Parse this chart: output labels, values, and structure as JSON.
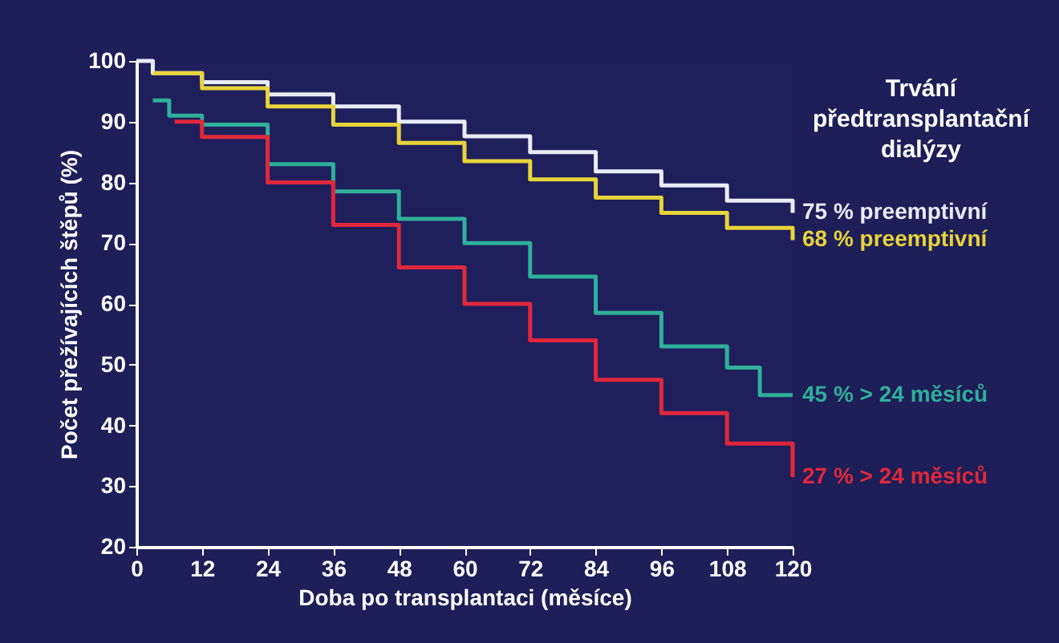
{
  "chart_data": {
    "type": "step",
    "xlabel": "Doba po transplantaci (měsíce)",
    "ylabel": "Počet přežívajících štěpů  (%)",
    "legend_title": "Trvání předtransplantační dialýzy",
    "xlim": [
      0,
      120
    ],
    "ylim": [
      20,
      100
    ],
    "xticks": [
      0,
      12,
      24,
      36,
      48,
      60,
      72,
      84,
      96,
      108,
      120
    ],
    "yticks": [
      20,
      30,
      40,
      50,
      60,
      70,
      80,
      90,
      100
    ],
    "grid": false,
    "marker": "none",
    "line_style": "solid",
    "series": [
      {
        "name": "75 % preemptivní",
        "color": "#e8ecf8",
        "x": [
          0,
          3,
          12,
          24,
          36,
          48,
          60,
          72,
          84,
          96,
          108,
          120
        ],
        "values": [
          100,
          98,
          96.5,
          94.5,
          92.5,
          90,
          87.6,
          85,
          81.8,
          79.5,
          77,
          75
        ]
      },
      {
        "name": "68 % preemptivní",
        "color": "#e8d43a",
        "x": [
          3,
          12,
          24,
          36,
          48,
          60,
          72,
          84,
          96,
          108,
          120
        ],
        "values": [
          98,
          95.5,
          92.5,
          89.5,
          86.5,
          83.5,
          80.5,
          77.5,
          75,
          72.5,
          70.5
        ]
      },
      {
        "name": "45 % > 24 měsíců",
        "color": "#2fb09a",
        "x": [
          3,
          6,
          12,
          24,
          36,
          48,
          60,
          72,
          84,
          96,
          108,
          114,
          120
        ],
        "values": [
          93.5,
          91,
          89.5,
          83,
          78.5,
          74,
          70,
          64.5,
          58.5,
          53,
          49.5,
          45,
          45
        ]
      },
      {
        "name": "27 % > 24 měsíců",
        "color": "#e0283a",
        "x": [
          7,
          12,
          24,
          36,
          48,
          60,
          72,
          84,
          96,
          108,
          120
        ],
        "values": [
          90,
          87.5,
          80,
          73,
          66,
          60,
          54,
          47.5,
          42,
          37,
          31.5
        ]
      }
    ]
  }
}
